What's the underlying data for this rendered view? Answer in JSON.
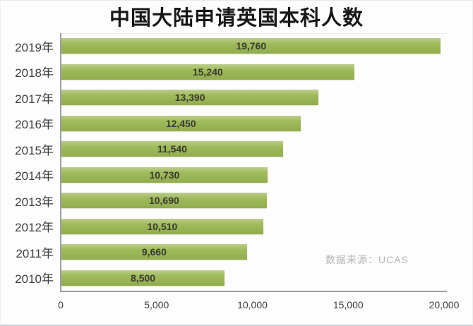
{
  "chart_data": {
    "type": "bar",
    "orientation": "horizontal",
    "title": "中国大陆申请英国本科人数",
    "categories": [
      "2019年",
      "2018年",
      "2017年",
      "2016年",
      "2015年",
      "2014年",
      "2013年",
      "2012年",
      "2011年",
      "2010年"
    ],
    "values": [
      19760,
      15240,
      13390,
      12450,
      11540,
      10730,
      10690,
      10510,
      9660,
      8500
    ],
    "value_labels": [
      "19,760",
      "15,240",
      "13,390",
      "12,450",
      "11,540",
      "10,730",
      "10,690",
      "10,510",
      "9,660",
      "8,500"
    ],
    "xlim": [
      0,
      20000
    ],
    "x_ticks": [
      "0",
      "5,000",
      "10,000",
      "15,000",
      "20,000"
    ],
    "grid": false,
    "legend": "none",
    "source_note": "数据来源：UCAS",
    "colors": {
      "bar_top": "#bdcd8d",
      "bar_mid": "#a0bb5b",
      "bar_bottom": "#92ad4d",
      "axis_line": "#9aa0a4",
      "label_text": "#3d3d3d",
      "value_text": "#3a3a32",
      "watermark_text": "#b4b4b4"
    }
  }
}
